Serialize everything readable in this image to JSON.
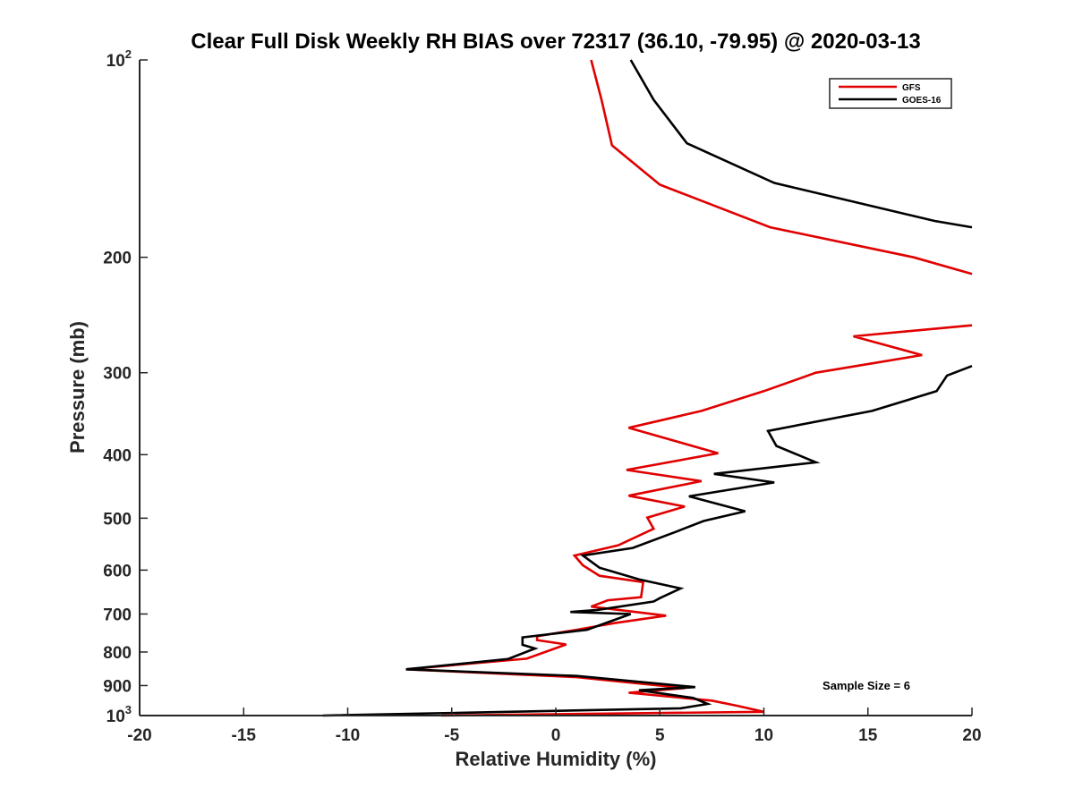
{
  "chart_data": {
    "type": "line",
    "title": "Clear Full Disk Weekly RH BIAS over 72317 (36.10, -79.95) @ 2020-03-13",
    "xlabel": "Relative Humidity (%)",
    "ylabel": "Pressure (mb)",
    "xlim": [
      -20,
      20
    ],
    "ylim": [
      100,
      1000
    ],
    "yscale": "log",
    "y_reversed": true,
    "grid": false,
    "legend_position": "top-right",
    "x_ticks": [
      {
        "value": -20,
        "label": "-20"
      },
      {
        "value": -15,
        "label": "-15"
      },
      {
        "value": -10,
        "label": "-10"
      },
      {
        "value": -5,
        "label": "-5"
      },
      {
        "value": 0,
        "label": "0"
      },
      {
        "value": 5,
        "label": "5"
      },
      {
        "value": 10,
        "label": "10"
      },
      {
        "value": 15,
        "label": "15"
      },
      {
        "value": 20,
        "label": "20"
      }
    ],
    "y_ticks": [
      {
        "value": 100,
        "base": "10",
        "exp": "2"
      },
      {
        "value": 200,
        "base": "200",
        "exp": ""
      },
      {
        "value": 300,
        "base": "300",
        "exp": ""
      },
      {
        "value": 400,
        "base": "400",
        "exp": ""
      },
      {
        "value": 500,
        "base": "500",
        "exp": ""
      },
      {
        "value": 600,
        "base": "600",
        "exp": ""
      },
      {
        "value": 700,
        "base": "700",
        "exp": ""
      },
      {
        "value": 800,
        "base": "800",
        "exp": ""
      },
      {
        "value": 900,
        "base": "900",
        "exp": ""
      },
      {
        "value": 1000,
        "base": "10",
        "exp": "3"
      }
    ],
    "annotation": "Sample Size = 6",
    "series": [
      {
        "name": "GFS",
        "color": "#e00000",
        "segments": [
          [
            {
              "x": 1.7,
              "y": 100
            },
            {
              "x": 2.2,
              "y": 115
            },
            {
              "x": 2.7,
              "y": 135
            },
            {
              "x": 5.0,
              "y": 155
            },
            {
              "x": 10.3,
              "y": 180
            },
            {
              "x": 17.2,
              "y": 200
            },
            {
              "x": 20.0,
              "y": 212
            }
          ],
          [
            {
              "x": 20.0,
              "y": 254
            },
            {
              "x": 14.3,
              "y": 264
            },
            {
              "x": 17.6,
              "y": 282
            },
            {
              "x": 12.5,
              "y": 300
            },
            {
              "x": 10.0,
              "y": 320
            },
            {
              "x": 7.0,
              "y": 343
            },
            {
              "x": 3.5,
              "y": 364
            },
            {
              "x": 7.8,
              "y": 398
            },
            {
              "x": 3.4,
              "y": 422
            },
            {
              "x": 7.0,
              "y": 439
            },
            {
              "x": 3.5,
              "y": 462
            },
            {
              "x": 6.2,
              "y": 480
            },
            {
              "x": 4.4,
              "y": 499
            },
            {
              "x": 4.7,
              "y": 519
            },
            {
              "x": 3.0,
              "y": 550
            },
            {
              "x": 0.9,
              "y": 570
            },
            {
              "x": 1.3,
              "y": 590
            },
            {
              "x": 2.1,
              "y": 612
            },
            {
              "x": 4.2,
              "y": 626
            },
            {
              "x": 4.1,
              "y": 660
            },
            {
              "x": 2.5,
              "y": 667
            },
            {
              "x": 1.7,
              "y": 682
            },
            {
              "x": 5.3,
              "y": 704
            },
            {
              "x": 2.8,
              "y": 723
            },
            {
              "x": 1.0,
              "y": 740
            },
            {
              "x": -0.9,
              "y": 757
            },
            {
              "x": -0.9,
              "y": 767
            },
            {
              "x": 0.5,
              "y": 779
            },
            {
              "x": -1.4,
              "y": 819
            },
            {
              "x": -7.2,
              "y": 850
            },
            {
              "x": 1.0,
              "y": 874
            },
            {
              "x": 6.2,
              "y": 908
            },
            {
              "x": 3.5,
              "y": 923
            },
            {
              "x": 7.5,
              "y": 949
            },
            {
              "x": 8.7,
              "y": 966
            },
            {
              "x": 10.0,
              "y": 987
            },
            {
              "x": -5.5,
              "y": 1000
            }
          ]
        ]
      },
      {
        "name": "GOES-16",
        "color": "#000000",
        "segments": [
          [
            {
              "x": 3.6,
              "y": 100
            },
            {
              "x": 4.7,
              "y": 115
            },
            {
              "x": 6.3,
              "y": 134
            },
            {
              "x": 10.5,
              "y": 154
            },
            {
              "x": 18.2,
              "y": 176
            },
            {
              "x": 20.0,
              "y": 180
            }
          ],
          [
            {
              "x": 20.0,
              "y": 293
            },
            {
              "x": 18.8,
              "y": 303
            },
            {
              "x": 18.3,
              "y": 320
            },
            {
              "x": 15.2,
              "y": 343
            },
            {
              "x": 10.2,
              "y": 368
            },
            {
              "x": 10.6,
              "y": 388
            },
            {
              "x": 12.5,
              "y": 411
            },
            {
              "x": 7.6,
              "y": 428
            },
            {
              "x": 10.5,
              "y": 441
            },
            {
              "x": 6.4,
              "y": 463
            },
            {
              "x": 9.1,
              "y": 488
            },
            {
              "x": 7.1,
              "y": 505
            },
            {
              "x": 5.8,
              "y": 524
            },
            {
              "x": 3.7,
              "y": 555
            },
            {
              "x": 1.3,
              "y": 570
            },
            {
              "x": 2.1,
              "y": 595
            },
            {
              "x": 4.0,
              "y": 620
            },
            {
              "x": 6.0,
              "y": 640
            },
            {
              "x": 5.0,
              "y": 662
            },
            {
              "x": 4.7,
              "y": 670
            },
            {
              "x": 2.0,
              "y": 690
            },
            {
              "x": 0.7,
              "y": 695
            },
            {
              "x": 3.6,
              "y": 700
            },
            {
              "x": 1.5,
              "y": 740
            },
            {
              "x": -1.6,
              "y": 760
            },
            {
              "x": -1.6,
              "y": 780
            },
            {
              "x": -1.0,
              "y": 790
            },
            {
              "x": -2.3,
              "y": 820
            },
            {
              "x": -7.2,
              "y": 850
            },
            {
              "x": 1.0,
              "y": 870
            },
            {
              "x": 6.7,
              "y": 905
            },
            {
              "x": 4.0,
              "y": 915
            },
            {
              "x": 6.6,
              "y": 940
            },
            {
              "x": 7.3,
              "y": 960
            },
            {
              "x": 6.0,
              "y": 975
            },
            {
              "x": -11.2,
              "y": 1000
            }
          ]
        ]
      }
    ]
  }
}
